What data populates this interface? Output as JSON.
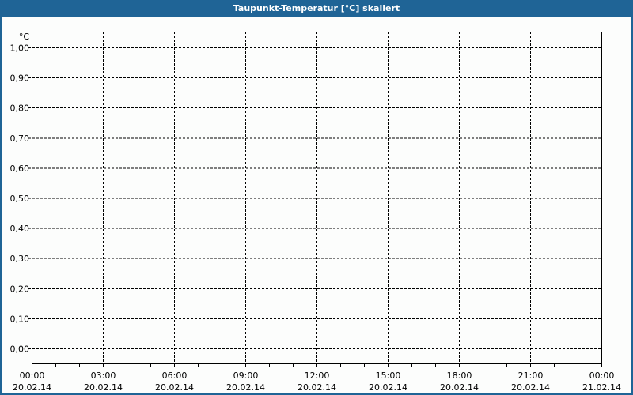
{
  "window": {
    "title": "Taupunkt-Temperatur [°C] skaliert"
  },
  "chart_data": {
    "type": "line",
    "title": "Taupunkt-Temperatur [°C] skaliert",
    "ylabel": "°C",
    "ylim": [
      0,
      1
    ],
    "yticks": [
      "0,00",
      "0,10",
      "0,20",
      "0,30",
      "0,40",
      "0,50",
      "0,60",
      "0,70",
      "0,80",
      "0,90",
      "1,00"
    ],
    "xticks": [
      {
        "time": "00:00",
        "date": "20.02.14"
      },
      {
        "time": "03:00",
        "date": "20.02.14"
      },
      {
        "time": "06:00",
        "date": "20.02.14"
      },
      {
        "time": "09:00",
        "date": "20.02.14"
      },
      {
        "time": "12:00",
        "date": "20.02.14"
      },
      {
        "time": "15:00",
        "date": "20.02.14"
      },
      {
        "time": "18:00",
        "date": "20.02.14"
      },
      {
        "time": "21:00",
        "date": "20.02.14"
      },
      {
        "time": "00:00",
        "date": "21.02.14"
      }
    ],
    "xlim": [
      "20.02.14 00:00",
      "21.02.14 00:00"
    ],
    "minor_ticks_per_major": 3,
    "grid": true,
    "series": []
  },
  "colors": {
    "titlebar": "#1f6496",
    "grid": "#000000"
  }
}
